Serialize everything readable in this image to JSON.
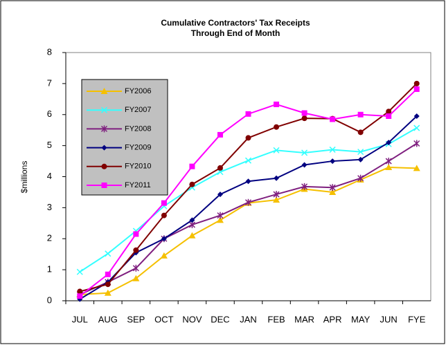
{
  "chart_data": {
    "type": "line",
    "title": "Cumulative Contractors' Tax Receipts",
    "subtitle": "Through End of Month",
    "y_label": "$millions",
    "categories": [
      "JUL",
      "AUG",
      "SEP",
      "OCT",
      "NOV",
      "DEC",
      "JAN",
      "FEB",
      "MAR",
      "APR",
      "MAY",
      "JUN",
      "FYE"
    ],
    "ylim": [
      0,
      8
    ],
    "yticks": [
      0,
      1,
      2,
      3,
      4,
      5,
      6,
      7,
      8
    ],
    "grid": false,
    "legend": "upper left",
    "series": [
      {
        "name": "FY2006",
        "color": "#f5c000",
        "marker": "triangle",
        "values": [
          0.2,
          0.25,
          0.72,
          1.45,
          2.1,
          2.6,
          3.15,
          3.25,
          3.6,
          3.5,
          3.9,
          4.3,
          4.27
        ]
      },
      {
        "name": "FY2007",
        "color": "#33ffff",
        "marker": "x",
        "values": [
          0.93,
          1.52,
          2.25,
          3.05,
          3.65,
          4.15,
          4.52,
          4.85,
          4.77,
          4.87,
          4.8,
          5.05,
          5.57
        ]
      },
      {
        "name": "FY2008",
        "color": "#7f1f7f",
        "marker": "star",
        "values": [
          0.2,
          0.6,
          1.05,
          2.0,
          2.45,
          2.75,
          3.17,
          3.43,
          3.68,
          3.65,
          3.95,
          4.5,
          5.07
        ]
      },
      {
        "name": "FY2009",
        "color": "#000080",
        "marker": "diamond",
        "values": [
          0.05,
          0.6,
          1.55,
          2.0,
          2.6,
          3.43,
          3.85,
          3.95,
          4.38,
          4.5,
          4.55,
          5.1,
          5.95
        ]
      },
      {
        "name": "FY2010",
        "color": "#800000",
        "marker": "circle",
        "values": [
          0.3,
          0.53,
          1.63,
          2.75,
          3.75,
          4.28,
          5.25,
          5.6,
          5.88,
          5.87,
          5.43,
          6.1,
          7.0
        ]
      },
      {
        "name": "FY2011",
        "color": "#ff00ff",
        "marker": "square",
        "values": [
          0.15,
          0.85,
          2.15,
          3.15,
          4.33,
          5.35,
          6.02,
          6.33,
          6.05,
          5.85,
          6.0,
          5.95,
          6.82
        ]
      }
    ]
  }
}
